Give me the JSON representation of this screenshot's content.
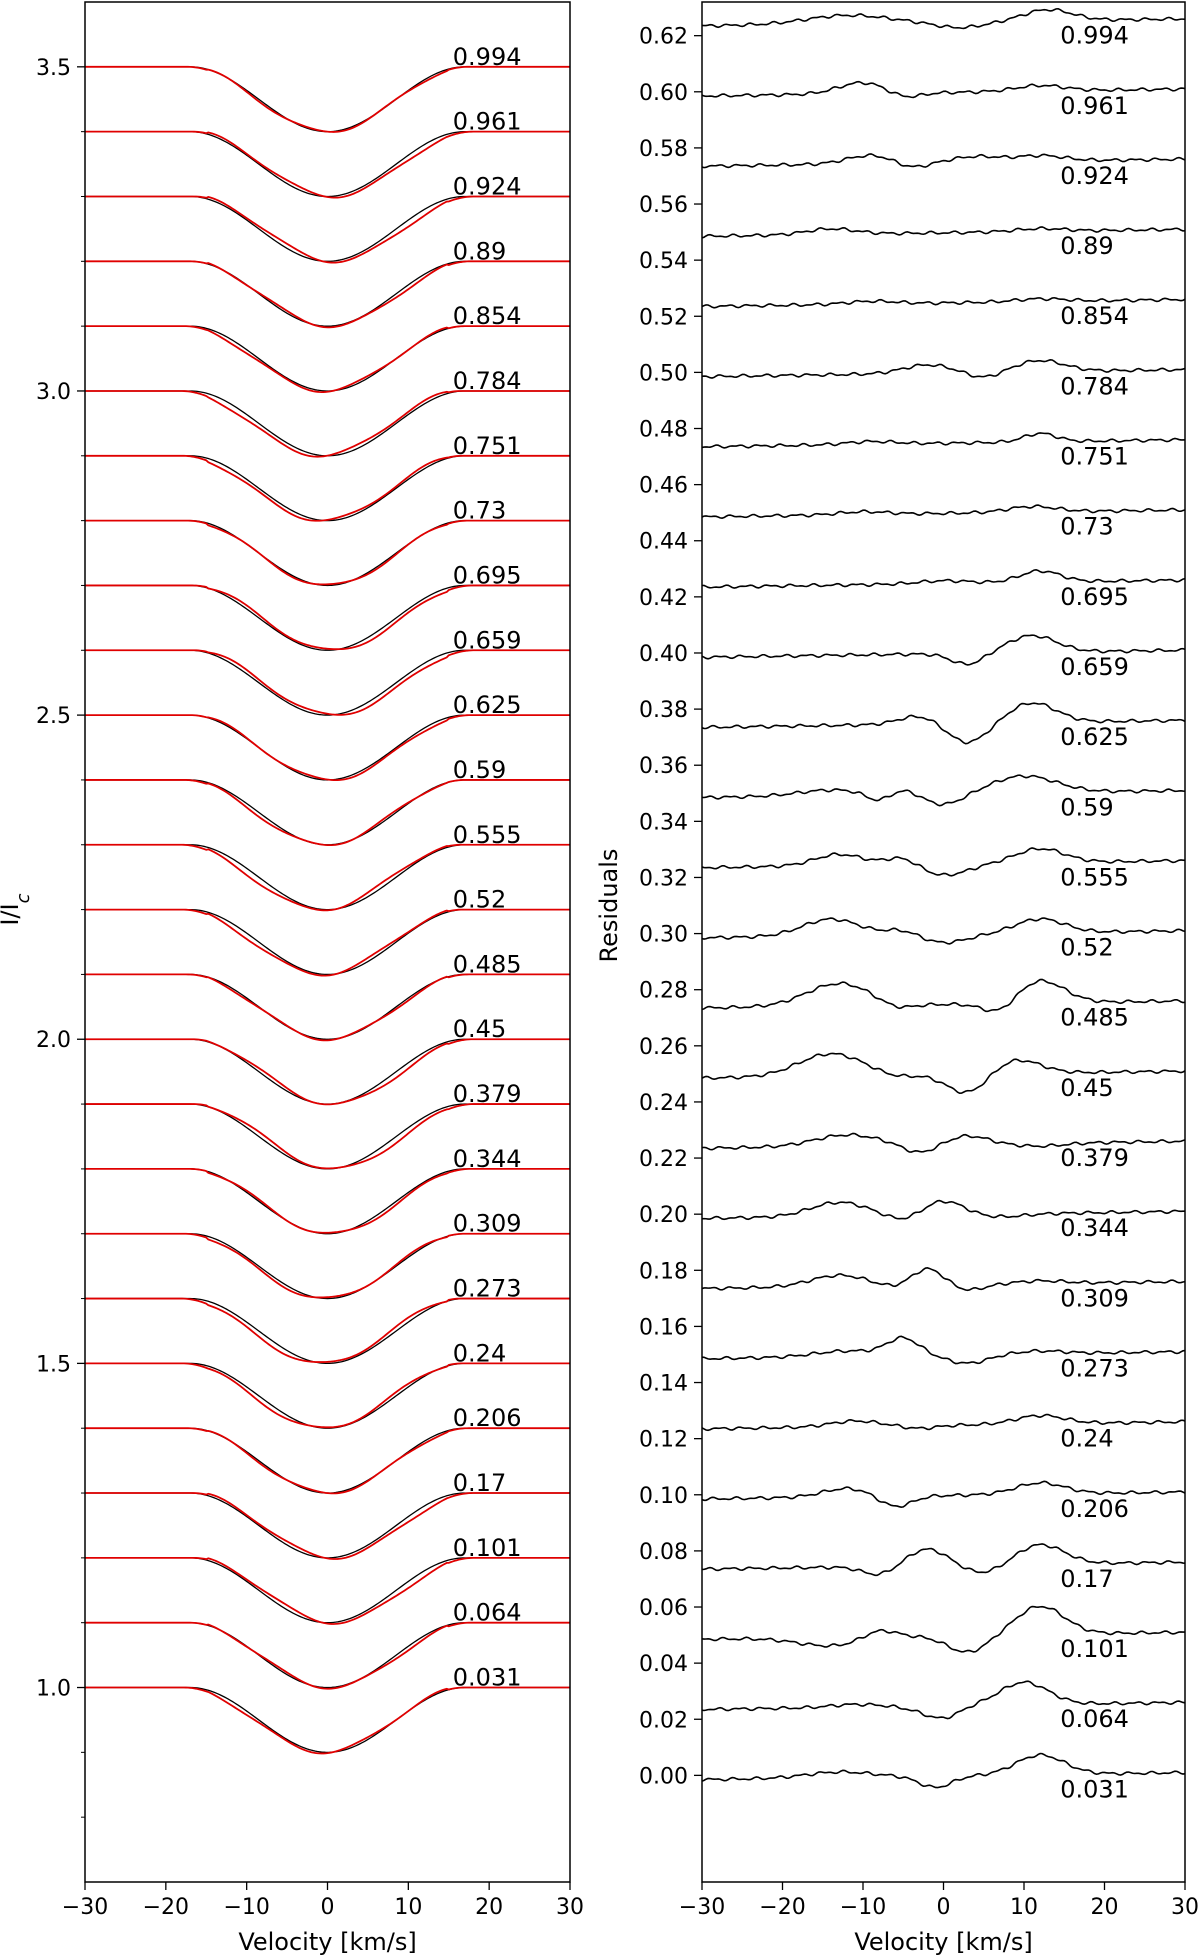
{
  "colors": {
    "observed": "#000000",
    "model": "#e00000",
    "axes": "#000000",
    "background": "#ffffff"
  },
  "chart_data": [
    {
      "type": "line",
      "panel": "left",
      "xlabel": "Velocity [km/s]",
      "ylabel": "I/I_c",
      "ylabel_main": "I/I",
      "ylabel_sub": "c",
      "xlim": [
        -30,
        30
      ],
      "ylim": [
        0.7,
        3.6
      ],
      "xticks": [
        -30,
        -20,
        -10,
        0,
        10,
        20,
        30
      ],
      "xtick_labels": [
        "−30",
        "−20",
        "−10",
        "0",
        "10",
        "20",
        "30"
      ],
      "yticks": [
        1.0,
        1.5,
        2.0,
        2.5,
        3.0,
        3.5
      ],
      "ytick_labels": [
        "1.0",
        "1.5",
        "2.0",
        "2.5",
        "3.0",
        "3.5"
      ],
      "offset_step": 0.1,
      "line_depth": 0.1,
      "line_center": 0,
      "line_halfwidth": 17,
      "series": [
        {
          "phase": "0.994",
          "offset": 3.5
        },
        {
          "phase": "0.961",
          "offset": 3.4
        },
        {
          "phase": "0.924",
          "offset": 3.3
        },
        {
          "phase": "0.89",
          "offset": 3.2
        },
        {
          "phase": "0.854",
          "offset": 3.1
        },
        {
          "phase": "0.784",
          "offset": 3.0
        },
        {
          "phase": "0.751",
          "offset": 2.9
        },
        {
          "phase": "0.73",
          "offset": 2.8
        },
        {
          "phase": "0.695",
          "offset": 2.7
        },
        {
          "phase": "0.659",
          "offset": 2.6
        },
        {
          "phase": "0.625",
          "offset": 2.5
        },
        {
          "phase": "0.59",
          "offset": 2.4
        },
        {
          "phase": "0.555",
          "offset": 2.3
        },
        {
          "phase": "0.52",
          "offset": 2.2
        },
        {
          "phase": "0.485",
          "offset": 2.1
        },
        {
          "phase": "0.45",
          "offset": 2.0
        },
        {
          "phase": "0.379",
          "offset": 1.9
        },
        {
          "phase": "0.344",
          "offset": 1.8
        },
        {
          "phase": "0.309",
          "offset": 1.7
        },
        {
          "phase": "0.273",
          "offset": 1.6
        },
        {
          "phase": "0.24",
          "offset": 1.5
        },
        {
          "phase": "0.206",
          "offset": 1.4
        },
        {
          "phase": "0.17",
          "offset": 1.3
        },
        {
          "phase": "0.101",
          "offset": 1.2
        },
        {
          "phase": "0.064",
          "offset": 1.1
        },
        {
          "phase": "0.031",
          "offset": 1.0
        }
      ]
    },
    {
      "type": "line",
      "panel": "right",
      "xlabel": "Velocity [km/s]",
      "ylabel": "Residuals",
      "xlim": [
        -30,
        30
      ],
      "ylim": [
        -0.038,
        0.632
      ],
      "xticks": [
        -30,
        -20,
        -10,
        0,
        10,
        20,
        30
      ],
      "xtick_labels": [
        "−30",
        "−20",
        "−10",
        "0",
        "10",
        "20",
        "30"
      ],
      "yticks": [
        0.0,
        0.02,
        0.04,
        0.06,
        0.08,
        0.1,
        0.12,
        0.14,
        0.16,
        0.18,
        0.2,
        0.22,
        0.24,
        0.26,
        0.28,
        0.3,
        0.32,
        0.34,
        0.36,
        0.38,
        0.4,
        0.42,
        0.44,
        0.46,
        0.48,
        0.5,
        0.52,
        0.54,
        0.56,
        0.58,
        0.6,
        0.62
      ],
      "ytick_labels": [
        "0.00",
        "0.02",
        "0.04",
        "0.06",
        "0.08",
        "0.10",
        "0.12",
        "0.14",
        "0.16",
        "0.18",
        "0.20",
        "0.22",
        "0.24",
        "0.26",
        "0.28",
        "0.30",
        "0.32",
        "0.34",
        "0.36",
        "0.38",
        "0.40",
        "0.42",
        "0.44",
        "0.46",
        "0.48",
        "0.50",
        "0.52",
        "0.54",
        "0.56",
        "0.58",
        "0.60",
        "0.62"
      ],
      "offset_step": 0.025,
      "series": [
        {
          "phase": "0.994",
          "offset": 0.625,
          "features": [
            [
              -12,
              0.003,
              5
            ],
            [
              2,
              -0.002,
              3
            ],
            [
              13,
              0.004,
              3
            ]
          ]
        },
        {
          "phase": "0.961",
          "offset": 0.6,
          "features": [
            [
              -10,
              0.004,
              3
            ],
            [
              -5,
              -0.002,
              2
            ],
            [
              12,
              0.002,
              3
            ]
          ]
        },
        {
          "phase": "0.924",
          "offset": 0.575,
          "features": [
            [
              -9,
              0.003,
              3
            ],
            [
              -4,
              -0.002,
              2
            ],
            [
              4,
              0.002,
              3
            ],
            [
              12,
              0.002,
              3
            ]
          ]
        },
        {
          "phase": "0.89",
          "offset": 0.55,
          "features": [
            [
              -14,
              0.002,
              3
            ],
            [
              12,
              0.001,
              3
            ]
          ]
        },
        {
          "phase": "0.854",
          "offset": 0.525,
          "features": [
            [
              -9,
              0.001,
              3
            ],
            [
              12,
              0.001,
              3
            ]
          ]
        },
        {
          "phase": "0.784",
          "offset": 0.5,
          "features": [
            [
              -2,
              0.003,
              3
            ],
            [
              5,
              -0.002,
              2
            ],
            [
              12,
              0.004,
              3
            ]
          ]
        },
        {
          "phase": "0.751",
          "offset": 0.475,
          "features": [
            [
              -9,
              0.001,
              3
            ],
            [
              12,
              0.003,
              2
            ]
          ]
        },
        {
          "phase": "0.73",
          "offset": 0.45,
          "features": [
            [
              -10,
              0.001,
              3
            ],
            [
              11,
              0.002,
              3
            ]
          ]
        },
        {
          "phase": "0.695",
          "offset": 0.425,
          "features": [
            [
              0,
              0.001,
              3
            ],
            [
              12,
              0.004,
              2.5
            ]
          ]
        },
        {
          "phase": "0.659",
          "offset": 0.4,
          "features": [
            [
              3,
              -0.004,
              2
            ],
            [
              11,
              0.006,
              3
            ]
          ]
        },
        {
          "phase": "0.625",
          "offset": 0.375,
          "features": [
            [
              -3,
              0.003,
              2.5
            ],
            [
              3,
              -0.007,
              2.5
            ],
            [
              11,
              0.007,
              3
            ]
          ]
        },
        {
          "phase": "0.59",
          "offset": 0.35,
          "features": [
            [
              -14,
              0.002,
              4
            ],
            [
              -8,
              -0.003,
              1.5
            ],
            [
              -5,
              0.002,
              2
            ],
            [
              0,
              -0.004,
              2.5
            ],
            [
              10,
              0.006,
              4
            ]
          ]
        },
        {
          "phase": "0.555",
          "offset": 0.325,
          "features": [
            [
              -13,
              0.004,
              3
            ],
            [
              -5,
              0.003,
              2
            ],
            [
              0,
              -0.004,
              3
            ],
            [
              12,
              0.005,
              3
            ]
          ]
        },
        {
          "phase": "0.52",
          "offset": 0.3,
          "features": [
            [
              -14,
              0.006,
              3.5
            ],
            [
              -5,
              0.002,
              2
            ],
            [
              0,
              -0.003,
              3
            ],
            [
              12,
              0.005,
              3
            ]
          ]
        },
        {
          "phase": "0.485",
          "offset": 0.275,
          "features": [
            [
              -13,
              0.008,
              4
            ],
            [
              -6,
              -0.002,
              2
            ],
            [
              7,
              -0.004,
              2
            ],
            [
              12,
              0.008,
              3
            ]
          ]
        },
        {
          "phase": "0.45",
          "offset": 0.25,
          "features": [
            [
              -14,
              0.008,
              4
            ],
            [
              -6,
              -0.001,
              2
            ],
            [
              3,
              -0.007,
              2.5
            ],
            [
              9,
              0.005,
              3
            ]
          ]
        },
        {
          "phase": "0.379",
          "offset": 0.225,
          "features": [
            [
              -12,
              0.004,
              4
            ],
            [
              -3,
              -0.003,
              2
            ],
            [
              3,
              0.003,
              2.5
            ],
            [
              12,
              -0.001,
              3
            ]
          ]
        },
        {
          "phase": "0.344",
          "offset": 0.2,
          "features": [
            [
              -13,
              0.005,
              3.5
            ],
            [
              -5,
              -0.002,
              2
            ],
            [
              0,
              0.005,
              2.5
            ],
            [
              7,
              -0.001,
              3
            ]
          ]
        },
        {
          "phase": "0.309",
          "offset": 0.175,
          "features": [
            [
              -13,
              0.004,
              3.5
            ],
            [
              -6,
              -0.001,
              2
            ],
            [
              -2,
              0.006,
              2
            ],
            [
              3,
              -0.002,
              2
            ],
            [
              12,
              0.001,
              3
            ]
          ]
        },
        {
          "phase": "0.273",
          "offset": 0.15,
          "features": [
            [
              -12,
              0.002,
              4
            ],
            [
              -5,
              0.006,
              2
            ],
            [
              3,
              -0.003,
              2.5
            ],
            [
              12,
              0.001,
              3
            ]
          ]
        },
        {
          "phase": "0.24",
          "offset": 0.125,
          "features": [
            [
              -11,
              0.002,
              3
            ],
            [
              -3,
              -0.001,
              2
            ],
            [
              12,
              0.003,
              3
            ]
          ]
        },
        {
          "phase": "0.206",
          "offset": 0.1,
          "features": [
            [
              -12,
              0.003,
              3
            ],
            [
              -6,
              -0.004,
              2
            ],
            [
              12,
              0.004,
              3
            ]
          ]
        },
        {
          "phase": "0.17",
          "offset": 0.075,
          "features": [
            [
              -8,
              -0.003,
              2
            ],
            [
              -2,
              0.006,
              2.5
            ],
            [
              5,
              -0.003,
              2.5
            ],
            [
              12,
              0.007,
              3
            ]
          ]
        },
        {
          "phase": "0.101",
          "offset": 0.05,
          "features": [
            [
              -14,
              -0.003,
              4
            ],
            [
              -8,
              0.003,
              2
            ],
            [
              3,
              -0.006,
              2.5
            ],
            [
              12,
              0.01,
              3
            ]
          ]
        },
        {
          "phase": "0.064",
          "offset": 0.025,
          "features": [
            [
              -11,
              0.001,
              3
            ],
            [
              -3,
              -0.001,
              2
            ],
            [
              0,
              -0.004,
              2
            ],
            [
              10,
              0.008,
              3
            ]
          ]
        },
        {
          "phase": "0.031",
          "offset": 0.0,
          "features": [
            [
              -13,
              0.002,
              4
            ],
            [
              -1,
              -0.004,
              2
            ],
            [
              12,
              0.007,
              3
            ]
          ]
        }
      ]
    }
  ]
}
